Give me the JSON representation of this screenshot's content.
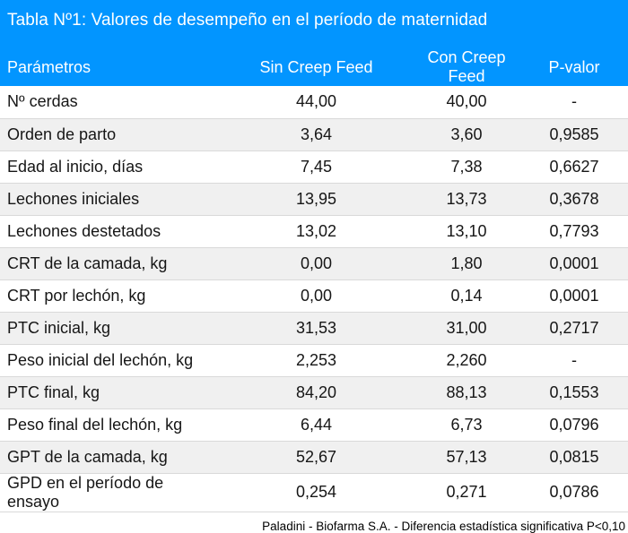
{
  "title": "Tabla Nº1: Valores de desempeño en el período de maternidad",
  "footer": "Paladini - Biofarma S.A. - Diferencia estadística significativa P<0,10",
  "colors": {
    "header_bg": "#0295ff",
    "header_text": "#ffffff",
    "row_alt_bg": "#f0f0f0",
    "row_border": "#d9d9d9",
    "text": "#161616"
  },
  "chart_data": {
    "type": "table",
    "title": "Tabla Nº1: Valores de desempeño en el período de maternidad",
    "columns": [
      "Parámetros",
      "Sin Creep Feed",
      "Con Creep Feed",
      "P-valor"
    ],
    "rows": [
      [
        "Nº cerdas",
        "44,00",
        "40,00",
        "-"
      ],
      [
        "Orden de parto",
        "3,64",
        "3,60",
        "0,9585"
      ],
      [
        "Edad al inicio, días",
        "7,45",
        "7,38",
        "0,6627"
      ],
      [
        "Lechones iniciales",
        "13,95",
        "13,73",
        "0,3678"
      ],
      [
        "Lechones destetados",
        "13,02",
        "13,10",
        "0,7793"
      ],
      [
        "CRT de la camada, kg",
        "0,00",
        "1,80",
        "0,0001"
      ],
      [
        "CRT por lechón, kg",
        "0,00",
        "0,14",
        "0,0001"
      ],
      [
        "PTC inicial, kg",
        "31,53",
        "31,00",
        "0,2717"
      ],
      [
        "Peso inicial del lechón, kg",
        "2,253",
        "2,260",
        "-"
      ],
      [
        "PTC final, kg",
        "84,20",
        "88,13",
        "0,1553"
      ],
      [
        "Peso final del lechón, kg",
        "6,44",
        "6,73",
        "0,0796"
      ],
      [
        "GPT de la camada, kg",
        "52,67",
        "57,13",
        "0,0815"
      ],
      [
        "GPD en el período de ensayo",
        "0,254",
        "0,271",
        "0,0786"
      ]
    ],
    "footnote": "Paladini - Biofarma S.A. - Diferencia estadística significativa P<0,10",
    "layout": {
      "header_style": "solid-azure-band",
      "row_striping": "white / light-gray alternating",
      "grid": "horizontal separators only"
    }
  }
}
